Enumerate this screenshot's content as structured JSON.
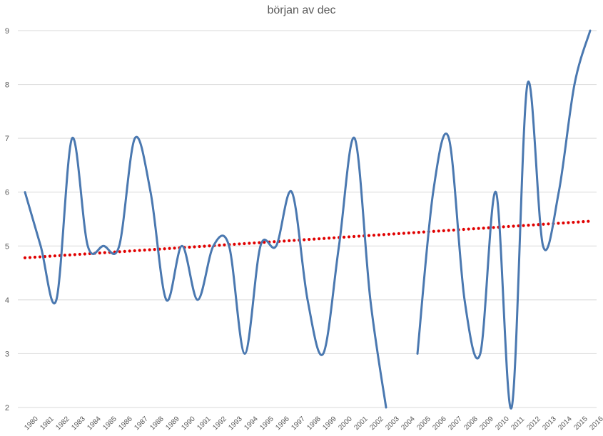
{
  "chart_data": {
    "type": "line",
    "title": "början av dec",
    "xlabel": "",
    "ylabel": "",
    "ylim": [
      2,
      9
    ],
    "yticks": [
      2,
      3,
      4,
      5,
      6,
      7,
      8,
      9
    ],
    "grid": "horizontal",
    "legend": "none",
    "categories": [
      "1980",
      "1981",
      "1982",
      "1983",
      "1984",
      "1985",
      "1986",
      "1987",
      "1988",
      "1989",
      "1990",
      "1991",
      "1992",
      "1993",
      "1994",
      "1995",
      "1996",
      "1997",
      "1998",
      "1999",
      "2000",
      "2001",
      "2002",
      "2003",
      "2004",
      "2005",
      "2006",
      "2007",
      "2008",
      "2009",
      "2010",
      "2011",
      "2012",
      "2013",
      "2014",
      "2015",
      "2016"
    ],
    "series": [
      {
        "color": "#4a78b0",
        "style": "smoothed-line",
        "values": [
          6,
          5,
          4,
          7,
          5,
          5,
          5,
          7,
          6,
          4,
          5,
          4,
          5,
          5,
          3,
          5,
          5,
          6,
          4,
          3,
          5,
          7,
          4,
          2,
          null,
          3,
          6,
          7,
          4,
          3,
          6,
          2,
          8,
          5,
          6,
          8,
          9
        ]
      }
    ],
    "trendline": {
      "type": "linear",
      "color": "#e00000",
      "style": "dotted",
      "start": 4.78,
      "end": 5.46
    }
  }
}
